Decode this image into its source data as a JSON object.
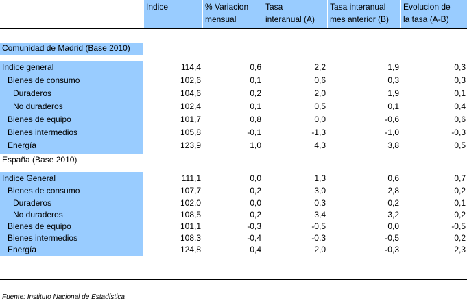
{
  "columns": [
    {
      "line1": "Indice",
      "line2": ""
    },
    {
      "line1": "% Variacion",
      "line2": "mensual"
    },
    {
      "line1": "Tasa",
      "line2": "interanual (A)"
    },
    {
      "line1": "Tasa interanual",
      "line2": "mes anterior (B)"
    },
    {
      "line1": "Evolucion de",
      "line2": "la tasa (A-B)"
    }
  ],
  "madrid": {
    "title": "Comunidad de Madrid (Base 2010)",
    "rows": [
      {
        "label": "Indice general",
        "indice": "114,4",
        "var": "0,6",
        "tasaA": "2,2",
        "tasaB": "1,9",
        "evol": "0,3"
      },
      {
        "label": "Bienes de consumo",
        "indice": "102,6",
        "var": "0,1",
        "tasaA": "0,6",
        "tasaB": "0,3",
        "evol": "0,3"
      },
      {
        "label": "Duraderos",
        "indice": "104,6",
        "var": "0,2",
        "tasaA": "2,0",
        "tasaB": "1,9",
        "evol": "0,1"
      },
      {
        "label": "No duraderos",
        "indice": "102,4",
        "var": "0,1",
        "tasaA": "0,5",
        "tasaB": "0,1",
        "evol": "0,4"
      },
      {
        "label": "Bienes de equipo",
        "indice": "101,7",
        "var": "0,8",
        "tasaA": "0,0",
        "tasaB": "-0,6",
        "evol": "0,6"
      },
      {
        "label": "Bienes intermedios",
        "indice": "105,8",
        "var": "-0,1",
        "tasaA": "-1,3",
        "tasaB": "-1,0",
        "evol": "-0,3"
      },
      {
        "label": "Energía",
        "indice": "123,9",
        "var": "1,0",
        "tasaA": "4,3",
        "tasaB": "3,8",
        "evol": "0,5"
      }
    ]
  },
  "espana": {
    "title": "España (Base 2010)",
    "rows": [
      {
        "label": "Indice General",
        "indice": "111,1",
        "var": "0,0",
        "tasaA": "1,3",
        "tasaB": "0,6",
        "evol": "0,7"
      },
      {
        "label": "Bienes de consumo",
        "indice": "107,7",
        "var": "0,2",
        "tasaA": "3,0",
        "tasaB": "2,8",
        "evol": "0,2"
      },
      {
        "label": "Duraderos",
        "indice": "102,0",
        "var": "0,0",
        "tasaA": "0,3",
        "tasaB": "0,2",
        "evol": "0,1"
      },
      {
        "label": "No duraderos",
        "indice": "108,5",
        "var": "0,2",
        "tasaA": "3,4",
        "tasaB": "3,2",
        "evol": "0,2"
      },
      {
        "label": "Bienes de equipo",
        "indice": "101,1",
        "var": "-0,3",
        "tasaA": "-0,5",
        "tasaB": "0,0",
        "evol": "-0,5"
      },
      {
        "label": "Bienes intermedios",
        "indice": "108,3",
        "var": "-0,4",
        "tasaA": "-0,3",
        "tasaB": "-0,5",
        "evol": "0,2"
      },
      {
        "label": "Energía",
        "indice": "124,8",
        "var": "0,4",
        "tasaA": "2,0",
        "tasaB": "-0,3",
        "evol": "2,3"
      }
    ]
  },
  "footer": "Fuente: Instituto Nacional de Estadística",
  "colors": {
    "header_bg": "#99ccff"
  }
}
